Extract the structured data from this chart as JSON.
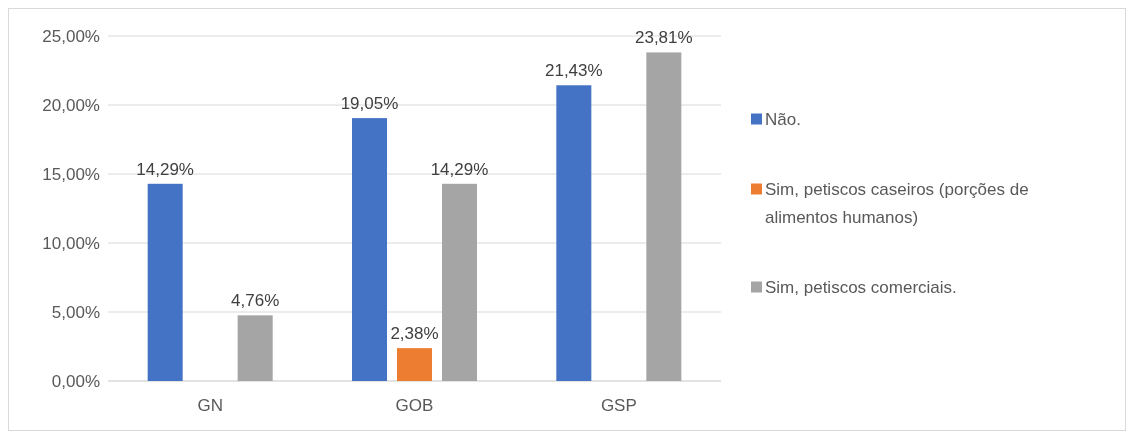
{
  "chart_data": {
    "type": "bar",
    "categories": [
      "GN",
      "GOB",
      "GSP"
    ],
    "series": [
      {
        "name": "Não.",
        "color": "#4472c4",
        "values": [
          14.29,
          19.05,
          21.43
        ],
        "value_labels": [
          "14,29%",
          "19,05%",
          "21,43%"
        ]
      },
      {
        "name": "Sim, petiscos caseiros (porções de alimentos humanos)",
        "color": "#ed7d31",
        "values": [
          null,
          2.38,
          null
        ],
        "value_labels": [
          null,
          "2,38%",
          null
        ]
      },
      {
        "name": "Sim, petiscos comerciais.",
        "color": "#a5a5a5",
        "values": [
          4.76,
          14.29,
          23.81
        ],
        "value_labels": [
          "4,76%",
          "14,29%",
          "23,81%"
        ]
      }
    ],
    "ylim": [
      0,
      25
    ],
    "yticks": [
      {
        "value": 0,
        "label": "0,00%"
      },
      {
        "value": 5,
        "label": "5,00%"
      },
      {
        "value": 10,
        "label": "10,00%"
      },
      {
        "value": 15,
        "label": "15,00%"
      },
      {
        "value": 20,
        "label": "20,00%"
      },
      {
        "value": 25,
        "label": "25,00%"
      }
    ],
    "grid": "y",
    "legend": "right"
  }
}
